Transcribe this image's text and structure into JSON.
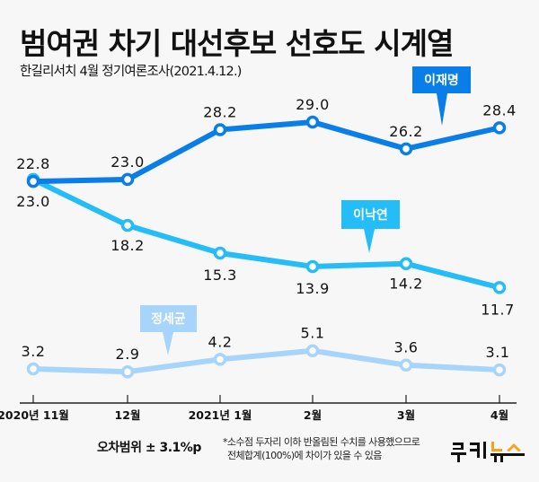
{
  "header": {
    "title": "범여권 차기 대선후보 선호도 시계열",
    "subtitle": "한길리서치 4월 정기여론조사(2021.4.12.)"
  },
  "footer": {
    "margin_of_error": "오차범위 ± 3.1%p",
    "note_line1": "*소수점 두자리 이하 반올림된 수치를 사용했으므로",
    "note_line2": "전체합계(100%)에 차이가 있을 수 있음",
    "logo": {
      "name": "쿠키뉴스",
      "colors": {
        "dark": "#111111",
        "accent": "#f5a31a"
      }
    }
  },
  "chart_data": {
    "type": "line",
    "title": "범여권 차기 대선후보 선호도 시계열",
    "subtitle": "한길리서치 4월 정기여론조사(2021.4.12.)",
    "xlabel": "",
    "ylabel": "",
    "categories": [
      "2020년 11월",
      "12월",
      "2021년 1월",
      "2월",
      "3월",
      "4월"
    ],
    "ylim": [
      0,
      30
    ],
    "grid": false,
    "series": [
      {
        "name": "이재명",
        "values": [
          22.8,
          23.0,
          28.2,
          29.0,
          26.2,
          28.4
        ],
        "labels": [
          "22.8",
          "23.0",
          "28.2",
          "29.0",
          "26.2",
          "28.4"
        ],
        "label_position": "above",
        "color": "#0a7ee8",
        "callout_after_index": 4
      },
      {
        "name": "이낙연",
        "values": [
          23.0,
          18.2,
          15.3,
          13.9,
          14.2,
          11.7
        ],
        "labels": [
          "23.0",
          "18.2",
          "15.3",
          "13.9",
          "14.2",
          "11.7"
        ],
        "label_position": "below",
        "color": "#25bdf7",
        "callout_after_index": 3
      },
      {
        "name": "정세균",
        "values": [
          3.2,
          2.9,
          4.2,
          5.1,
          3.6,
          3.1
        ],
        "labels": [
          "3.2",
          "2.9",
          "4.2",
          "5.1",
          "3.6",
          "3.1"
        ],
        "label_position": "above",
        "color": "#a6d4fb",
        "callout_after_index": 1
      }
    ]
  }
}
